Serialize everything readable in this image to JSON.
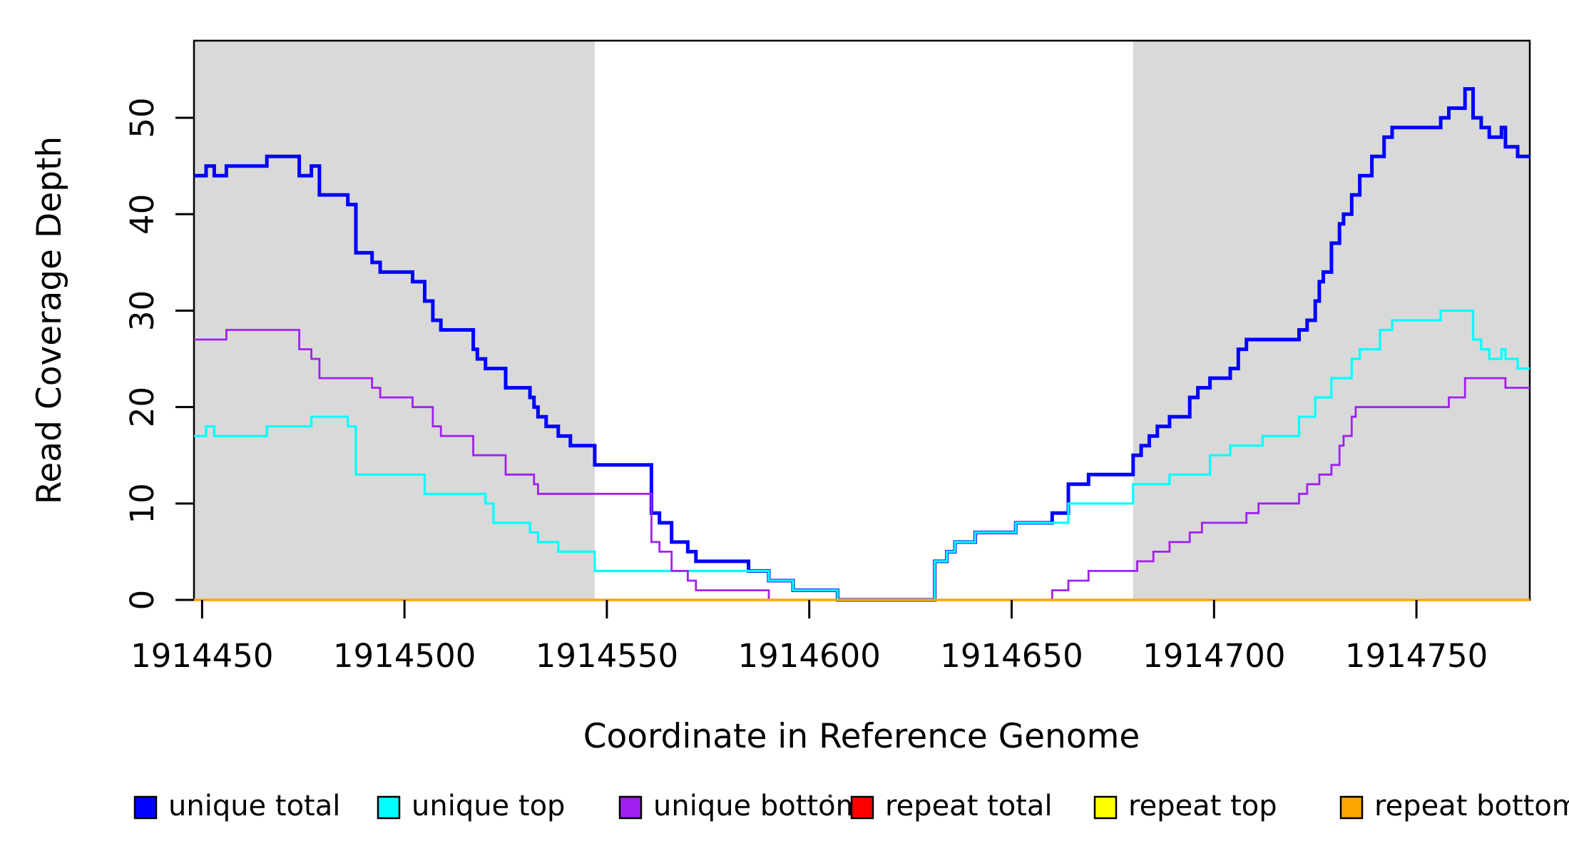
{
  "figure": {
    "ylabel": "Read Coverage Depth",
    "xlabel": "Coordinate in Reference Genome"
  },
  "chart_data": {
    "type": "line",
    "subtype": "step-coverage-plot",
    "title": "",
    "xlabel": "Coordinate in Reference Genome",
    "ylabel": "Read Coverage Depth",
    "xlim": [
      1914448,
      1914778
    ],
    "ylim": [
      0,
      58
    ],
    "grid": false,
    "x_ticks": [
      1914450,
      1914500,
      1914550,
      1914600,
      1914650,
      1914700,
      1914750
    ],
    "y_ticks": [
      0,
      10,
      20,
      30,
      40,
      50
    ],
    "shaded_regions": [
      {
        "name": "left-repeat-flank",
        "x0": 1914448,
        "x1": 1914547,
        "color": "#d9d9d9"
      },
      {
        "name": "right-repeat-flank",
        "x0": 1914680,
        "x1": 1914778,
        "color": "#d9d9d9"
      }
    ],
    "legend_position": "bottom",
    "series": [
      {
        "name": "unique total",
        "color": "#0000ff",
        "stroke_width": 5,
        "steps": [
          [
            1914448,
            44
          ],
          [
            1914451,
            45
          ],
          [
            1914453,
            44
          ],
          [
            1914456,
            45
          ],
          [
            1914466,
            46
          ],
          [
            1914474,
            44
          ],
          [
            1914477,
            45
          ],
          [
            1914479,
            42
          ],
          [
            1914486,
            41
          ],
          [
            1914488,
            36
          ],
          [
            1914492,
            35
          ],
          [
            1914494,
            34
          ],
          [
            1914502,
            33
          ],
          [
            1914505,
            31
          ],
          [
            1914507,
            29
          ],
          [
            1914509,
            28
          ],
          [
            1914517,
            26
          ],
          [
            1914518,
            25
          ],
          [
            1914520,
            24
          ],
          [
            1914525,
            22
          ],
          [
            1914531,
            21
          ],
          [
            1914532,
            20
          ],
          [
            1914533,
            19
          ],
          [
            1914535,
            18
          ],
          [
            1914538,
            17
          ],
          [
            1914541,
            16
          ],
          [
            1914547,
            14
          ],
          [
            1914561,
            9
          ],
          [
            1914563,
            8
          ],
          [
            1914566,
            6
          ],
          [
            1914570,
            5
          ],
          [
            1914572,
            4
          ],
          [
            1914585,
            3
          ],
          [
            1914590,
            2
          ],
          [
            1914596,
            1
          ],
          [
            1914607,
            0
          ],
          [
            1914631,
            4
          ],
          [
            1914634,
            5
          ],
          [
            1914636,
            6
          ],
          [
            1914641,
            7
          ],
          [
            1914651,
            8
          ],
          [
            1914660,
            9
          ],
          [
            1914664,
            12
          ],
          [
            1914669,
            13
          ],
          [
            1914680,
            15
          ],
          [
            1914682,
            16
          ],
          [
            1914684,
            17
          ],
          [
            1914686,
            18
          ],
          [
            1914689,
            19
          ],
          [
            1914694,
            21
          ],
          [
            1914696,
            22
          ],
          [
            1914699,
            23
          ],
          [
            1914704,
            24
          ],
          [
            1914706,
            26
          ],
          [
            1914708,
            27
          ],
          [
            1914721,
            28
          ],
          [
            1914723,
            29
          ],
          [
            1914725,
            31
          ],
          [
            1914726,
            33
          ],
          [
            1914727,
            34
          ],
          [
            1914729,
            37
          ],
          [
            1914731,
            39
          ],
          [
            1914732,
            40
          ],
          [
            1914734,
            42
          ],
          [
            1914736,
            44
          ],
          [
            1914739,
            46
          ],
          [
            1914742,
            48
          ],
          [
            1914744,
            49
          ],
          [
            1914756,
            50
          ],
          [
            1914758,
            51
          ],
          [
            1914762,
            53
          ],
          [
            1914764,
            50
          ],
          [
            1914766,
            49
          ],
          [
            1914768,
            48
          ],
          [
            1914771,
            49
          ],
          [
            1914772,
            47
          ],
          [
            1914775,
            46
          ]
        ]
      },
      {
        "name": "unique top",
        "color": "#00ffff",
        "stroke_width": 3.2,
        "steps": [
          [
            1914448,
            17
          ],
          [
            1914451,
            18
          ],
          [
            1914453,
            17
          ],
          [
            1914466,
            18
          ],
          [
            1914477,
            19
          ],
          [
            1914486,
            18
          ],
          [
            1914488,
            13
          ],
          [
            1914505,
            11
          ],
          [
            1914520,
            10
          ],
          [
            1914522,
            8
          ],
          [
            1914531,
            7
          ],
          [
            1914533,
            6
          ],
          [
            1914538,
            5
          ],
          [
            1914547,
            3
          ],
          [
            1914590,
            2
          ],
          [
            1914596,
            1
          ],
          [
            1914607,
            0
          ],
          [
            1914631,
            4
          ],
          [
            1914634,
            5
          ],
          [
            1914636,
            6
          ],
          [
            1914641,
            7
          ],
          [
            1914651,
            8
          ],
          [
            1914664,
            10
          ],
          [
            1914680,
            12
          ],
          [
            1914689,
            13
          ],
          [
            1914699,
            15
          ],
          [
            1914704,
            16
          ],
          [
            1914712,
            17
          ],
          [
            1914721,
            19
          ],
          [
            1914725,
            21
          ],
          [
            1914729,
            23
          ],
          [
            1914734,
            25
          ],
          [
            1914736,
            26
          ],
          [
            1914741,
            28
          ],
          [
            1914744,
            29
          ],
          [
            1914756,
            30
          ],
          [
            1914764,
            27
          ],
          [
            1914766,
            26
          ],
          [
            1914768,
            25
          ],
          [
            1914771,
            26
          ],
          [
            1914772,
            25
          ],
          [
            1914775,
            24
          ]
        ]
      },
      {
        "name": "unique bottom",
        "color": "#a020f0",
        "stroke_width": 2.8,
        "steps": [
          [
            1914448,
            27
          ],
          [
            1914456,
            28
          ],
          [
            1914474,
            26
          ],
          [
            1914477,
            25
          ],
          [
            1914479,
            23
          ],
          [
            1914492,
            22
          ],
          [
            1914494,
            21
          ],
          [
            1914502,
            20
          ],
          [
            1914507,
            18
          ],
          [
            1914509,
            17
          ],
          [
            1914517,
            15
          ],
          [
            1914525,
            13
          ],
          [
            1914532,
            12
          ],
          [
            1914533,
            11
          ],
          [
            1914561,
            6
          ],
          [
            1914563,
            5
          ],
          [
            1914566,
            3
          ],
          [
            1914570,
            2
          ],
          [
            1914572,
            1
          ],
          [
            1914590,
            0
          ],
          [
            1914660,
            1
          ],
          [
            1914664,
            2
          ],
          [
            1914669,
            3
          ],
          [
            1914681,
            4
          ],
          [
            1914685,
            5
          ],
          [
            1914689,
            6
          ],
          [
            1914694,
            7
          ],
          [
            1914697,
            8
          ],
          [
            1914708,
            9
          ],
          [
            1914711,
            10
          ],
          [
            1914721,
            11
          ],
          [
            1914723,
            12
          ],
          [
            1914726,
            13
          ],
          [
            1914729,
            14
          ],
          [
            1914731,
            16
          ],
          [
            1914732,
            17
          ],
          [
            1914734,
            19
          ],
          [
            1914735,
            20
          ],
          [
            1914758,
            21
          ],
          [
            1914762,
            23
          ],
          [
            1914772,
            22
          ]
        ]
      },
      {
        "name": "repeat total",
        "color": "#ff0000",
        "stroke_width": 2.5,
        "steps": [
          [
            1914448,
            0
          ]
        ]
      },
      {
        "name": "repeat top",
        "color": "#ffff00",
        "stroke_width": 2.5,
        "steps": [
          [
            1914448,
            0
          ]
        ]
      },
      {
        "name": "repeat bottom",
        "color": "#ffa500",
        "stroke_width": 3.5,
        "steps": [
          [
            1914448,
            0
          ]
        ]
      }
    ],
    "legend": [
      {
        "label": "unique total",
        "color": "#0000ff"
      },
      {
        "label": "unique top",
        "color": "#00ffff"
      },
      {
        "label": "unique bottom",
        "color": "#a020f0"
      },
      {
        "label": "repeat total",
        "color": "#ff0000"
      },
      {
        "label": "repeat top",
        "color": "#ffff00"
      },
      {
        "label": "repeat bottom",
        "color": "#ffa500"
      }
    ]
  }
}
